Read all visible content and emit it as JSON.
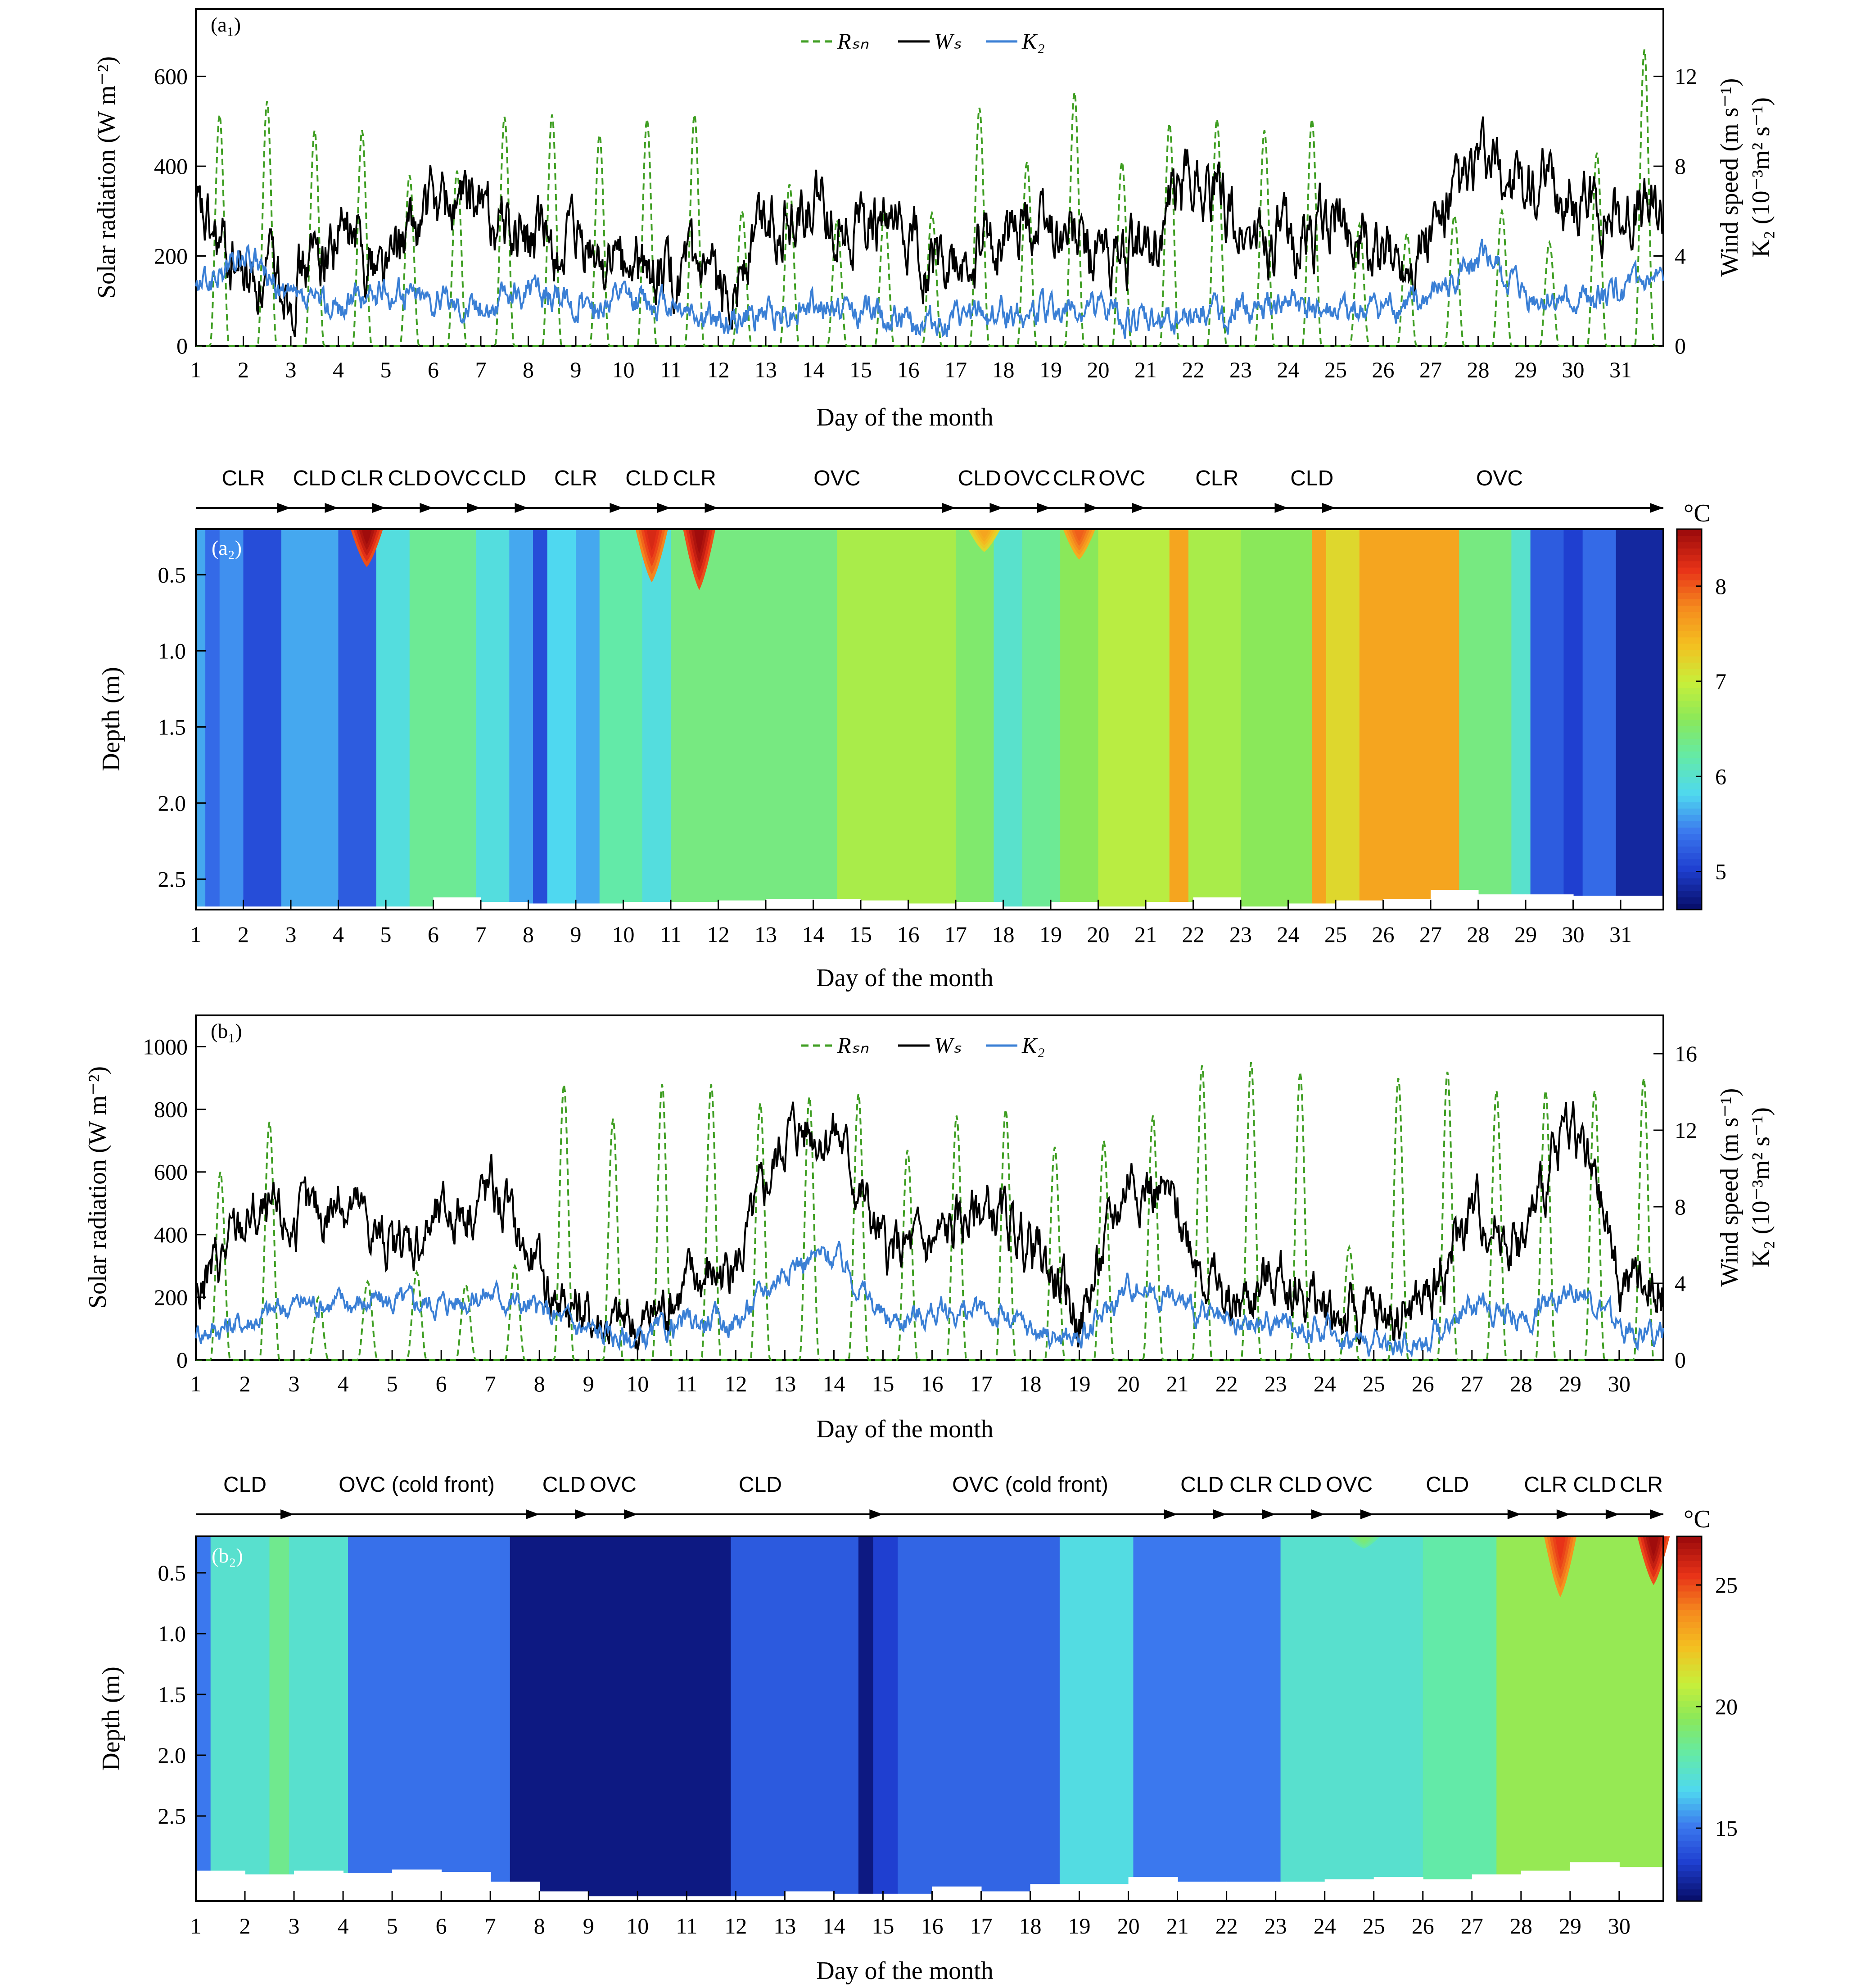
{
  "colors": {
    "rsn": "#3f9e22",
    "ws": "#000000",
    "kz": "#3a7fd5",
    "colormap": [
      "#08106e",
      "#1f3fd0",
      "#3b78ee",
      "#4fd8f0",
      "#63eaa8",
      "#8ae85a",
      "#c8ef3a",
      "#f4c020",
      "#f58a1e",
      "#e83318",
      "#a00c0c"
    ]
  },
  "common": {
    "xlabel": "Day of the month",
    "ylabel_solar": "Solar radiation (W m⁻²)",
    "ylabel_wind": "Wind speed (m s⁻¹)",
    "ylabel_kz": "K₂ (10⁻³m² s⁻¹)",
    "ylabel_depth": "Depth (m)",
    "unit_c": "°C",
    "legend": [
      "Rₛₙ",
      "Wₛ",
      "K₂"
    ]
  },
  "chart_data": [
    {
      "id": "a1",
      "label": "(a₁)",
      "type": "line",
      "xlim": [
        1,
        31.9
      ],
      "xticks": [
        1,
        2,
        3,
        4,
        5,
        6,
        7,
        8,
        9,
        10,
        11,
        12,
        13,
        14,
        15,
        16,
        17,
        18,
        19,
        20,
        21,
        22,
        23,
        24,
        25,
        26,
        27,
        28,
        29,
        30,
        31
      ],
      "ylim_left": [
        0,
        750
      ],
      "yticks_left": [
        0,
        200,
        400,
        600
      ],
      "ylim_right": [
        0,
        15
      ],
      "yticks_right": [
        0,
        4,
        8,
        12
      ],
      "rsn_daily_peaks": [
        515,
        545,
        480,
        480,
        380,
        390,
        510,
        515,
        470,
        505,
        515,
        300,
        360,
        280,
        300,
        295,
        530,
        410,
        565,
        410,
        495,
        505,
        480,
        505,
        270,
        250,
        290,
        300,
        230,
        430,
        660
      ],
      "ws_daily_means": [
        5.5,
        3.0,
        3.0,
        5.0,
        3.5,
        6.5,
        6.0,
        4.5,
        4.0,
        3.5,
        3.0,
        2.0,
        6.0,
        6.0,
        5.5,
        4.5,
        3.0,
        5.0,
        5.5,
        4.0,
        4.0,
        8.0,
        5.0,
        4.5,
        5.5,
        3.5,
        5.0,
        8.0,
        7.0,
        6.5,
        6.0
      ],
      "kz_daily_means": [
        2.5,
        4.0,
        1.8,
        1.8,
        2.5,
        2.2,
        1.8,
        2.5,
        1.8,
        2.0,
        2.0,
        1.0,
        1.5,
        1.8,
        1.5,
        1.2,
        1.0,
        1.5,
        1.5,
        1.5,
        1.0,
        1.5,
        1.5,
        1.8,
        1.2,
        1.5,
        2.0,
        4.0,
        2.0,
        1.8,
        2.5
      ]
    },
    {
      "id": "a2",
      "label": "(a₂)",
      "type": "heatmap",
      "xlim": [
        1,
        31.9
      ],
      "xticks": [
        1,
        2,
        3,
        4,
        5,
        6,
        7,
        8,
        9,
        10,
        11,
        12,
        13,
        14,
        15,
        16,
        17,
        18,
        19,
        20,
        21,
        22,
        23,
        24,
        25,
        26,
        27,
        28,
        29,
        30,
        31
      ],
      "ylim": [
        0.2,
        2.7
      ],
      "yticks": [
        0.5,
        1.0,
        1.5,
        2.0,
        2.5
      ],
      "ytick_labels": [
        "0.5",
        "1.0",
        "1.5",
        "2.0",
        "2.5"
      ],
      "colorbar": {
        "min": 4.6,
        "max": 8.6,
        "ticks": [
          5,
          6,
          7,
          8
        ]
      },
      "weather": [
        {
          "label": "CLR",
          "start": 1,
          "end": 3
        },
        {
          "label": "CLD",
          "start": 3,
          "end": 4
        },
        {
          "label": "CLR",
          "start": 4,
          "end": 5
        },
        {
          "label": "CLD",
          "start": 5,
          "end": 6
        },
        {
          "label": "OVC",
          "start": 6,
          "end": 7
        },
        {
          "label": "CLD",
          "start": 7,
          "end": 8
        },
        {
          "label": "CLR",
          "start": 8,
          "end": 10
        },
        {
          "label": "CLD",
          "start": 10,
          "end": 11
        },
        {
          "label": "CLR",
          "start": 11,
          "end": 12
        },
        {
          "label": "OVC",
          "start": 12,
          "end": 17
        },
        {
          "label": "CLD",
          "start": 17,
          "end": 18
        },
        {
          "label": "OVC",
          "start": 18,
          "end": 19
        },
        {
          "label": "CLR",
          "start": 19,
          "end": 20
        },
        {
          "label": "OVC",
          "start": 20,
          "end": 21
        },
        {
          "label": "CLR",
          "start": 21,
          "end": 24
        },
        {
          "label": "CLD",
          "start": 24,
          "end": 25
        },
        {
          "label": "OVC",
          "start": 25,
          "end": 31.9
        }
      ],
      "temperature_segments": [
        {
          "start": 1.0,
          "end": 1.2,
          "temp": 5.6
        },
        {
          "start": 1.2,
          "end": 1.5,
          "temp": 5.3
        },
        {
          "start": 1.5,
          "end": 2.0,
          "temp": 5.5
        },
        {
          "start": 2.0,
          "end": 2.8,
          "temp": 5.1
        },
        {
          "start": 2.8,
          "end": 3.3,
          "temp": 5.6
        },
        {
          "start": 3.3,
          "end": 4.0,
          "temp": 5.6
        },
        {
          "start": 4.0,
          "end": 4.8,
          "temp": 5.2
        },
        {
          "start": 4.8,
          "end": 5.5,
          "temp": 5.9
        },
        {
          "start": 5.5,
          "end": 6.9,
          "temp": 6.3
        },
        {
          "start": 6.9,
          "end": 7.6,
          "temp": 5.9
        },
        {
          "start": 7.6,
          "end": 8.1,
          "temp": 5.6
        },
        {
          "start": 8.1,
          "end": 8.4,
          "temp": 5.1
        },
        {
          "start": 8.4,
          "end": 9.0,
          "temp": 5.8
        },
        {
          "start": 9.0,
          "end": 9.5,
          "temp": 5.6
        },
        {
          "start": 9.5,
          "end": 10.4,
          "temp": 6.2
        },
        {
          "start": 10.4,
          "end": 11.0,
          "temp": 5.9
        },
        {
          "start": 11.0,
          "end": 14.5,
          "temp": 6.4
        },
        {
          "start": 14.5,
          "end": 17.0,
          "temp": 6.8
        },
        {
          "start": 17.0,
          "end": 17.8,
          "temp": 6.5
        },
        {
          "start": 17.8,
          "end": 18.4,
          "temp": 6.0
        },
        {
          "start": 18.4,
          "end": 19.2,
          "temp": 6.3
        },
        {
          "start": 19.2,
          "end": 20.0,
          "temp": 6.6
        },
        {
          "start": 20.0,
          "end": 21.5,
          "temp": 6.9
        },
        {
          "start": 21.5,
          "end": 21.9,
          "temp": 7.6
        },
        {
          "start": 21.9,
          "end": 23.0,
          "temp": 6.8
        },
        {
          "start": 23.0,
          "end": 24.5,
          "temp": 6.6
        },
        {
          "start": 24.5,
          "end": 24.8,
          "temp": 7.6
        },
        {
          "start": 24.8,
          "end": 25.5,
          "temp": 7.2
        },
        {
          "start": 25.5,
          "end": 27.6,
          "temp": 7.6
        },
        {
          "start": 27.6,
          "end": 28.7,
          "temp": 6.4
        },
        {
          "start": 28.7,
          "end": 29.1,
          "temp": 6.0
        },
        {
          "start": 29.1,
          "end": 29.8,
          "temp": 5.2
        },
        {
          "start": 29.8,
          "end": 30.2,
          "temp": 5.0
        },
        {
          "start": 30.2,
          "end": 30.9,
          "temp": 5.3
        },
        {
          "start": 30.9,
          "end": 31.9,
          "temp": 4.8
        }
      ],
      "surface_warm_events": [
        {
          "day": 4.6,
          "depth": 0.45,
          "temp": 8.6
        },
        {
          "day": 10.6,
          "depth": 0.55,
          "temp": 8.3
        },
        {
          "day": 11.6,
          "depth": 0.6,
          "temp": 8.6
        },
        {
          "day": 19.6,
          "depth": 0.4,
          "temp": 8.0
        },
        {
          "day": 17.6,
          "depth": 0.35,
          "temp": 7.6
        }
      ],
      "bottom_depth_by_day": [
        2.68,
        2.68,
        2.68,
        2.68,
        2.68,
        2.62,
        2.65,
        2.66,
        2.66,
        2.65,
        2.65,
        2.64,
        2.63,
        2.63,
        2.64,
        2.66,
        2.65,
        2.68,
        2.65,
        2.68,
        2.65,
        2.62,
        2.68,
        2.66,
        2.64,
        2.63,
        2.57,
        2.6,
        2.6,
        2.61,
        2.61
      ]
    },
    {
      "id": "b1",
      "label": "(b₁)",
      "type": "line",
      "xlim": [
        1,
        30.9
      ],
      "xticks": [
        1,
        2,
        3,
        4,
        5,
        6,
        7,
        8,
        9,
        10,
        11,
        12,
        13,
        14,
        15,
        16,
        17,
        18,
        19,
        20,
        21,
        22,
        23,
        24,
        25,
        26,
        27,
        28,
        29,
        30
      ],
      "ylim_left": [
        0,
        1100
      ],
      "yticks_left": [
        0,
        200,
        400,
        600,
        800,
        1000
      ],
      "ylim_right": [
        0,
        18
      ],
      "yticks_right": [
        0,
        4,
        8,
        12,
        16
      ],
      "rsn_daily_peaks": [
        600,
        760,
        200,
        250,
        280,
        240,
        300,
        880,
        770,
        880,
        880,
        820,
        840,
        850,
        670,
        780,
        800,
        680,
        700,
        780,
        940,
        950,
        920,
        360,
        900,
        920,
        860,
        860,
        860,
        900
      ],
      "ws_daily_means": [
        3.5,
        7.5,
        7.0,
        8.5,
        5.5,
        7.5,
        9.0,
        4.0,
        2.0,
        1.5,
        4.0,
        5.0,
        12.0,
        12.0,
        5.5,
        6.0,
        8.0,
        6.0,
        2.0,
        10.0,
        7.5,
        2.5,
        4.5,
        2.5,
        2.0,
        3.0,
        8.0,
        6.0,
        13.0,
        4.0
      ],
      "kz_daily_means": [
        1.5,
        2.0,
        3.0,
        3.0,
        3.0,
        3.0,
        3.5,
        2.5,
        1.5,
        1.0,
        2.0,
        2.0,
        5.0,
        5.5,
        2.0,
        2.5,
        2.5,
        1.5,
        1.0,
        4.0,
        3.0,
        1.5,
        2.0,
        1.5,
        0.8,
        1.0,
        3.0,
        2.0,
        4.0,
        1.5
      ]
    },
    {
      "id": "b2",
      "label": "(b₂)",
      "type": "heatmap",
      "xlim": [
        1,
        30.9
      ],
      "xticks": [
        1,
        2,
        3,
        4,
        5,
        6,
        7,
        8,
        9,
        10,
        11,
        12,
        13,
        14,
        15,
        16,
        17,
        18,
        19,
        20,
        21,
        22,
        23,
        24,
        25,
        26,
        27,
        28,
        29,
        30
      ],
      "ylim": [
        0.2,
        3.2
      ],
      "yticks": [
        0.5,
        1.0,
        1.5,
        2.0,
        2.5
      ],
      "ytick_labels": [
        "0.5",
        "1.0",
        "1.5",
        "2.0",
        "2.5"
      ],
      "colorbar": {
        "min": 12.0,
        "max": 27.0,
        "ticks": [
          15,
          20,
          25
        ]
      },
      "weather": [
        {
          "label": "CLD",
          "start": 1,
          "end": 3
        },
        {
          "label": "OVC (cold front)",
          "start": 3,
          "end": 8
        },
        {
          "label": "CLD",
          "start": 8,
          "end": 9
        },
        {
          "label": "OVC",
          "start": 9,
          "end": 10
        },
        {
          "label": "CLD",
          "start": 10,
          "end": 15
        },
        {
          "label": "OVC (cold front)",
          "start": 15,
          "end": 21
        },
        {
          "label": "CLD",
          "start": 21,
          "end": 22
        },
        {
          "label": "CLR",
          "start": 22,
          "end": 23
        },
        {
          "label": "CLD",
          "start": 23,
          "end": 24
        },
        {
          "label": "OVC",
          "start": 24,
          "end": 25
        },
        {
          "label": "CLD",
          "start": 25,
          "end": 28
        },
        {
          "label": "CLR",
          "start": 28,
          "end": 29
        },
        {
          "label": "CLD",
          "start": 29,
          "end": 30
        },
        {
          "label": "CLR",
          "start": 30,
          "end": 30.9
        }
      ],
      "temperature_segments": [
        {
          "start": 1.0,
          "end": 1.3,
          "temp": 15.0
        },
        {
          "start": 1.3,
          "end": 2.5,
          "temp": 17.2
        },
        {
          "start": 2.5,
          "end": 2.9,
          "temp": 18.5
        },
        {
          "start": 2.9,
          "end": 4.1,
          "temp": 17.2
        },
        {
          "start": 4.1,
          "end": 7.4,
          "temp": 14.8
        },
        {
          "start": 7.4,
          "end": 11.9,
          "temp": 12.3
        },
        {
          "start": 11.9,
          "end": 14.5,
          "temp": 14.2
        },
        {
          "start": 14.5,
          "end": 14.8,
          "temp": 12.3
        },
        {
          "start": 14.8,
          "end": 15.3,
          "temp": 13.5
        },
        {
          "start": 15.3,
          "end": 18.6,
          "temp": 14.5
        },
        {
          "start": 18.6,
          "end": 20.1,
          "temp": 16.8
        },
        {
          "start": 20.1,
          "end": 23.1,
          "temp": 15.0
        },
        {
          "start": 23.1,
          "end": 26.0,
          "temp": 17.2
        },
        {
          "start": 26.0,
          "end": 27.5,
          "temp": 18.0
        },
        {
          "start": 27.5,
          "end": 30.9,
          "temp": 19.8
        }
      ],
      "surface_warm_events": [
        {
          "day": 28.8,
          "depth": 0.7,
          "temp": 25.5
        },
        {
          "day": 30.7,
          "depth": 0.6,
          "temp": 27.0
        },
        {
          "day": 24.8,
          "depth": 0.3,
          "temp": 19.0
        }
      ],
      "bottom_depth_by_day": [
        2.95,
        2.98,
        2.95,
        2.97,
        2.94,
        2.96,
        3.04,
        3.12,
        3.16,
        3.16,
        3.16,
        3.16,
        3.12,
        3.14,
        3.14,
        3.08,
        3.12,
        3.06,
        3.06,
        3.0,
        3.04,
        3.04,
        3.04,
        3.02,
        3.0,
        3.02,
        2.98,
        2.95,
        2.88,
        2.92
      ]
    }
  ]
}
